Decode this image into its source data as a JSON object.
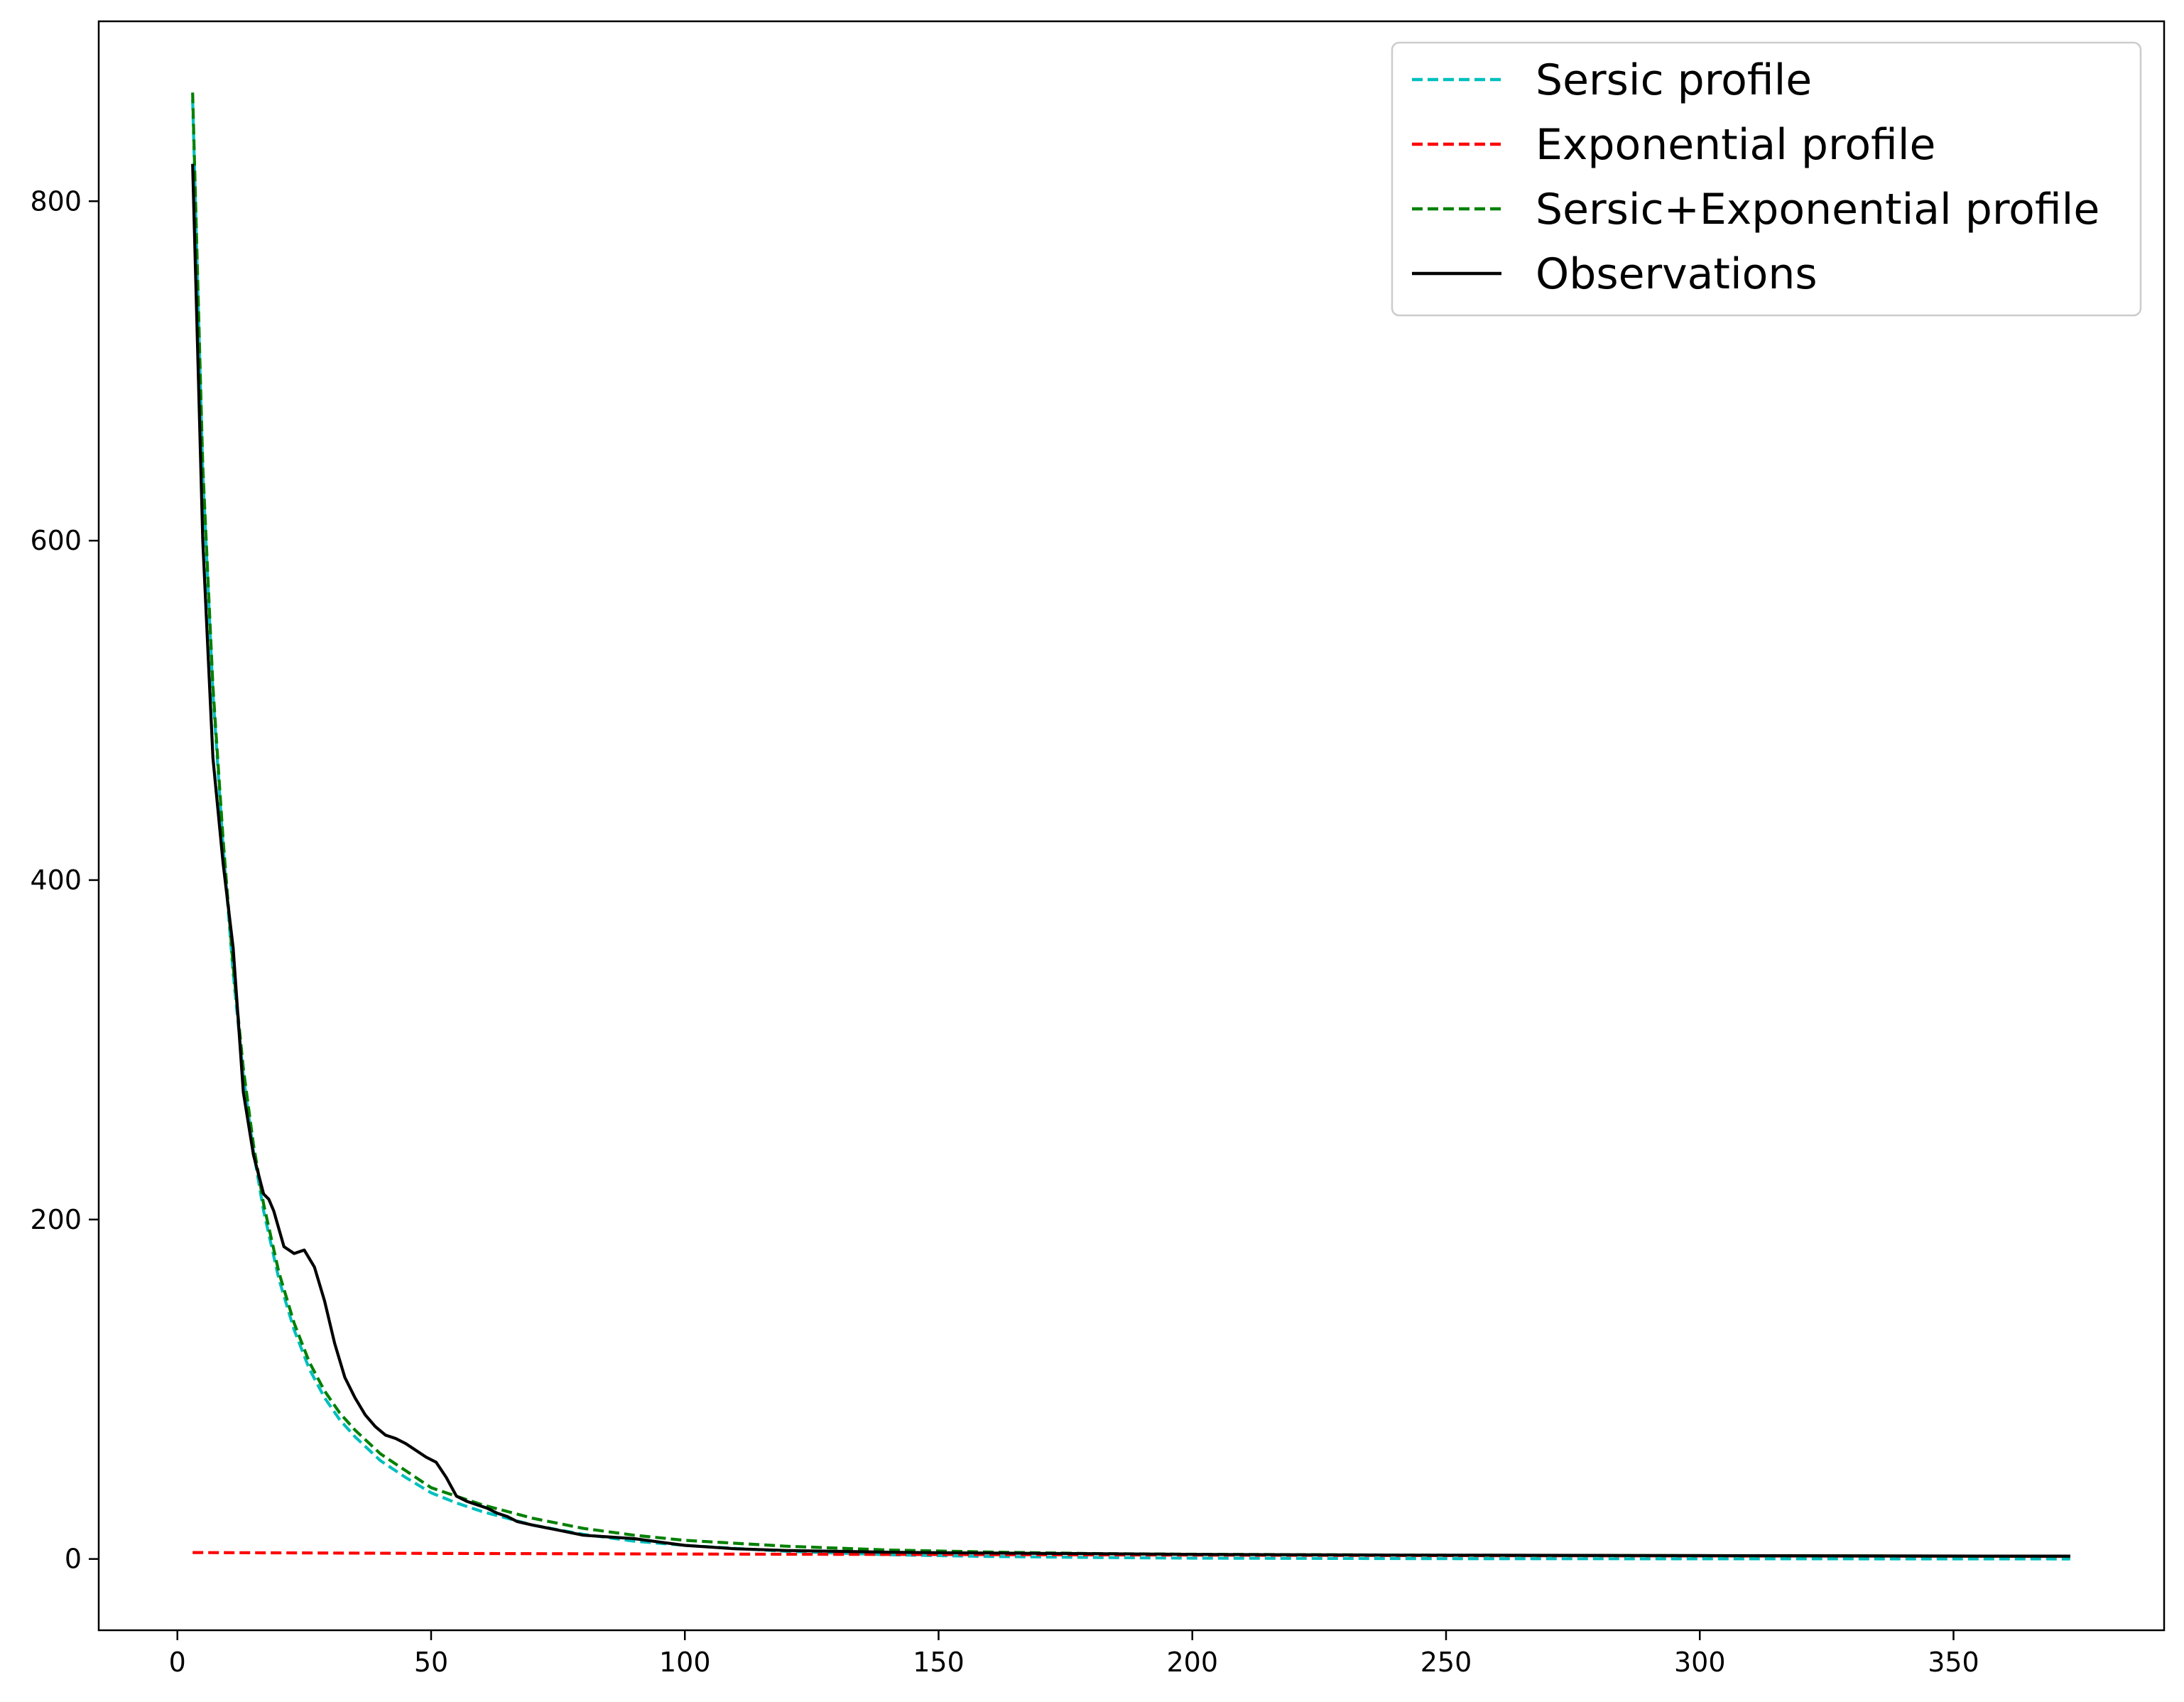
{
  "chart_data": {
    "type": "line",
    "title": "",
    "xlabel": "",
    "ylabel": "",
    "xlim": [
      -15.5,
      391.5
    ],
    "ylim": [
      -42,
      906
    ],
    "x_ticks": [
      0,
      50,
      100,
      150,
      200,
      250,
      300,
      350
    ],
    "y_ticks": [
      0,
      200,
      400,
      600,
      800
    ],
    "grid": false,
    "legend_position": "top-right",
    "series": [
      {
        "name": "Sersic profile",
        "color": "#00bfbf",
        "style": "dashed",
        "x": [
          3,
          5,
          7,
          9,
          11,
          13,
          15,
          17,
          20,
          23,
          26,
          29,
          32,
          35,
          40,
          45,
          50,
          55,
          60,
          70,
          80,
          90,
          100,
          120,
          140,
          160,
          180,
          200,
          250,
          300,
          350,
          373
        ],
        "y": [
          860,
          640,
          510,
          420,
          345,
          285,
          240,
          205,
          165,
          135,
          112,
          95,
          82,
          72,
          58,
          48,
          39,
          33,
          28,
          20,
          14.5,
          10.5,
          8,
          4.5,
          2.5,
          1.5,
          0.9,
          0.5,
          0.2,
          0.1,
          0.05,
          0.03
        ]
      },
      {
        "name": "Exponential profile",
        "color": "#ff0000",
        "style": "dashed",
        "x": [
          3,
          50,
          100,
          150,
          200,
          250,
          300,
          350,
          373
        ],
        "y": [
          3.8,
          3.3,
          2.9,
          2.6,
          2.3,
          2.0,
          1.8,
          1.6,
          1.5
        ]
      },
      {
        "name": "Sersic+Exponential profile",
        "color": "#008000",
        "style": "dashed",
        "x": [
          3,
          5,
          7,
          9,
          11,
          13,
          15,
          17,
          20,
          23,
          26,
          29,
          32,
          35,
          40,
          45,
          50,
          55,
          60,
          70,
          80,
          90,
          100,
          120,
          140,
          160,
          180,
          200,
          250,
          300,
          350,
          373
        ],
        "y": [
          864,
          644,
          514,
          424,
          349,
          289,
          244,
          209,
          169,
          139,
          116,
          99,
          86,
          76,
          62,
          52,
          42,
          37,
          32,
          24,
          18,
          14,
          11,
          7.5,
          5.3,
          4.1,
          3.2,
          2.8,
          2.2,
          1.9,
          1.65,
          1.55
        ]
      },
      {
        "name": "Observations",
        "color": "#000000",
        "style": "solid",
        "x": [
          3,
          5,
          7,
          9,
          11,
          13,
          15,
          17,
          18,
          19,
          21,
          23,
          25,
          27,
          29,
          31,
          33,
          35,
          37,
          39,
          41,
          43,
          45,
          47,
          49,
          51,
          53,
          55,
          57,
          59,
          61,
          63,
          65,
          67,
          70,
          75,
          80,
          85,
          90,
          95,
          100,
          110,
          120,
          130,
          140,
          150,
          160,
          170,
          180,
          190,
          200,
          220,
          240,
          260,
          280,
          300,
          320,
          340,
          360,
          373
        ],
        "y": [
          822,
          600,
          472,
          410,
          360,
          275,
          238,
          215,
          212,
          205,
          184,
          180,
          182,
          172,
          152,
          127,
          107,
          95,
          85,
          78,
          73,
          71,
          68,
          64,
          60,
          57,
          48,
          37,
          34,
          32,
          30,
          27,
          25,
          22,
          20,
          17,
          14,
          13,
          12,
          10,
          8,
          6,
          5,
          4.5,
          4,
          3.7,
          3.5,
          3.3,
          3.1,
          2.9,
          2.7,
          2.5,
          2.3,
          2.2,
          2.1,
          2.0,
          1.9,
          1.8,
          1.7,
          1.7
        ]
      }
    ]
  }
}
